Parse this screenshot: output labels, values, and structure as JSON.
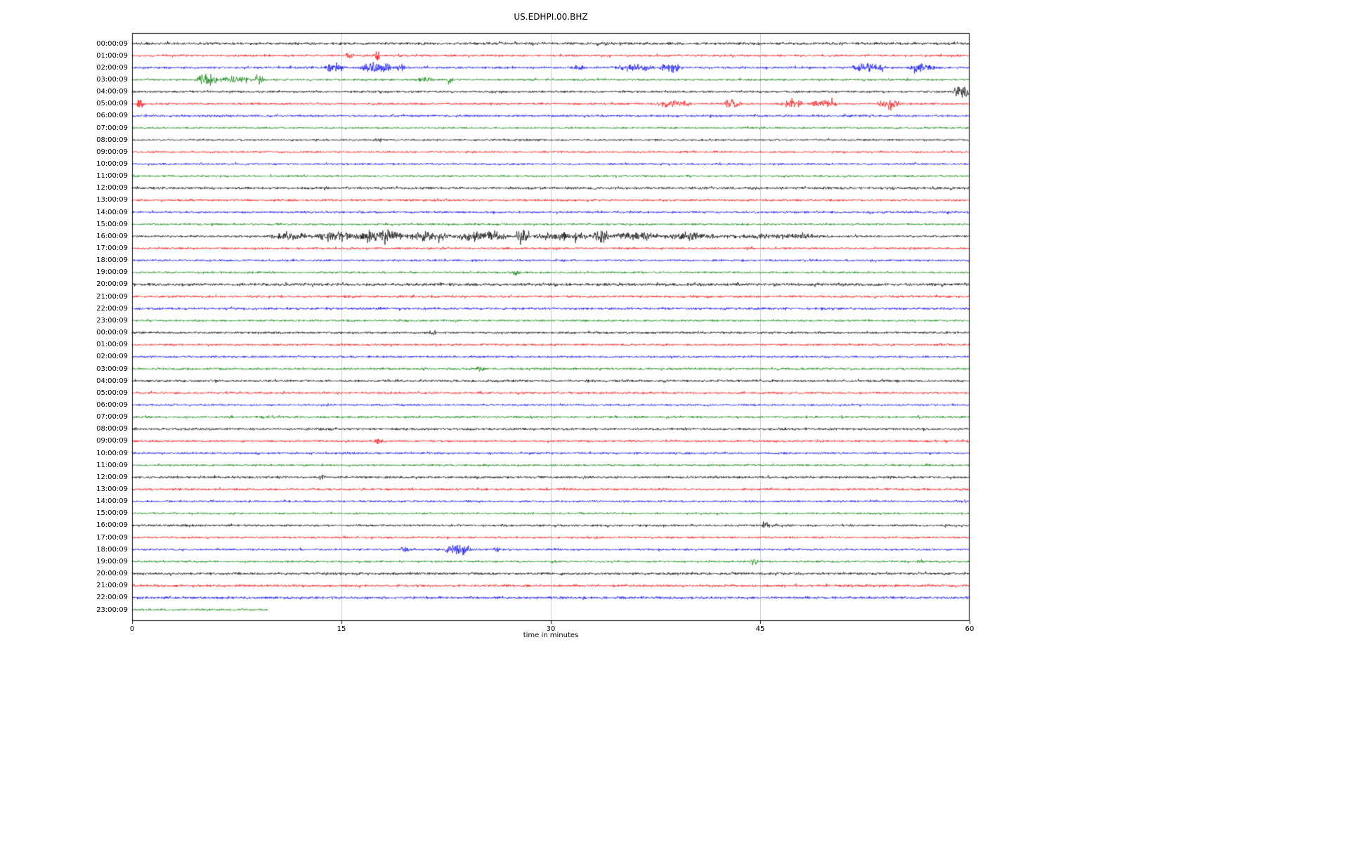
{
  "title": "US.EDHPI.00.BHZ",
  "axis": {
    "xlabel": "time in minutes",
    "x_ticks": [
      0,
      15,
      30,
      45,
      60
    ],
    "x_range": [
      0,
      60
    ]
  },
  "colors": {
    "black": "#000000",
    "red": "#ff0000",
    "blue": "#0000ff",
    "green": "#008000",
    "grid": "#cccccc",
    "axis": "#000000"
  },
  "chart_data": {
    "type": "line",
    "subtype": "helicorder-dayplot",
    "station": "US.EDHPI.00.BHZ",
    "title": "US.EDHPI.00.BHZ",
    "xlabel": "time in minutes",
    "x_units": "minutes",
    "x_range": [
      0,
      60
    ],
    "x_ticks": [
      0,
      15,
      30,
      45,
      60
    ],
    "grid": "vertical-only",
    "color_cycle": [
      "black",
      "red",
      "blue",
      "green"
    ],
    "rows": [
      {
        "label": "00:00:09",
        "color": "black",
        "amp": 1.6,
        "events": []
      },
      {
        "label": "01:00:09",
        "color": "red",
        "amp": 1.3,
        "events": [
          [
            15.3,
            15.8,
            4
          ],
          [
            17.3,
            17.8,
            4.5
          ]
        ]
      },
      {
        "label": "02:00:09",
        "color": "blue",
        "amp": 1.3,
        "events": [
          [
            13.8,
            15.2,
            5
          ],
          [
            16.3,
            18.6,
            5
          ],
          [
            18.8,
            19.6,
            3
          ],
          [
            31.5,
            32.5,
            2.5
          ],
          [
            34.2,
            37.5,
            3
          ],
          [
            37.8,
            39.5,
            4.5
          ],
          [
            51.5,
            54.0,
            4
          ],
          [
            55.5,
            57.5,
            4.5
          ]
        ]
      },
      {
        "label": "03:00:09",
        "color": "green",
        "amp": 1.2,
        "events": [
          [
            4.6,
            6.2,
            7
          ],
          [
            6.2,
            8.6,
            3
          ],
          [
            8.7,
            9.4,
            6
          ],
          [
            20.5,
            21.5,
            2.5
          ],
          [
            22.4,
            23.0,
            2
          ]
        ]
      },
      {
        "label": "04:00:09",
        "color": "black",
        "amp": 1.2,
        "events": [
          [
            58.8,
            60,
            6.5
          ]
        ]
      },
      {
        "label": "05:00:09",
        "color": "red",
        "amp": 1.2,
        "events": [
          [
            0.2,
            0.9,
            4
          ],
          [
            37.3,
            40.2,
            3
          ],
          [
            42.4,
            43.6,
            5
          ],
          [
            46.4,
            48.1,
            3.5
          ],
          [
            48.5,
            50.6,
            4
          ],
          [
            53.3,
            55.2,
            4
          ]
        ]
      },
      {
        "label": "06:00:09",
        "color": "blue",
        "amp": 1.3,
        "events": []
      },
      {
        "label": "07:00:09",
        "color": "green",
        "amp": 1.1,
        "events": []
      },
      {
        "label": "08:00:09",
        "color": "black",
        "amp": 1.1,
        "events": [
          [
            17.4,
            17.9,
            3
          ]
        ]
      },
      {
        "label": "09:00:09",
        "color": "red",
        "amp": 1.1,
        "events": []
      },
      {
        "label": "10:00:09",
        "color": "blue",
        "amp": 1.2,
        "events": []
      },
      {
        "label": "11:00:09",
        "color": "green",
        "amp": 1.2,
        "events": []
      },
      {
        "label": "12:00:09",
        "color": "black",
        "amp": 1.5,
        "events": []
      },
      {
        "label": "13:00:09",
        "color": "red",
        "amp": 1.3,
        "events": []
      },
      {
        "label": "14:00:09",
        "color": "blue",
        "amp": 1.3,
        "events": []
      },
      {
        "label": "15:00:09",
        "color": "green",
        "amp": 1.2,
        "events": []
      },
      {
        "label": "16:00:09",
        "color": "black",
        "amp": 1.3,
        "events": [
          [
            9.8,
            13,
            3
          ],
          [
            13,
            16,
            5
          ],
          [
            16,
            19.5,
            7
          ],
          [
            19.5,
            23,
            4.5
          ],
          [
            23,
            27,
            5
          ],
          [
            27.4,
            28.6,
            8
          ],
          [
            28.6,
            33,
            4
          ],
          [
            33,
            34.2,
            7
          ],
          [
            34.2,
            38,
            3.5
          ],
          [
            38,
            42,
            3
          ],
          [
            42,
            50,
            2
          ]
        ]
      },
      {
        "label": "17:00:09",
        "color": "red",
        "amp": 1.3,
        "events": []
      },
      {
        "label": "18:00:09",
        "color": "blue",
        "amp": 1.2,
        "events": []
      },
      {
        "label": "19:00:09",
        "color": "green",
        "amp": 1.2,
        "events": [
          [
            27.2,
            27.8,
            2.5
          ]
        ]
      },
      {
        "label": "20:00:09",
        "color": "black",
        "amp": 1.7,
        "events": []
      },
      {
        "label": "21:00:09",
        "color": "red",
        "amp": 1.4,
        "events": []
      },
      {
        "label": "22:00:09",
        "color": "blue",
        "amp": 1.4,
        "events": []
      },
      {
        "label": "23:00:09",
        "color": "green",
        "amp": 1.2,
        "events": []
      },
      {
        "label": "00:00:09",
        "color": "black",
        "amp": 1.3,
        "events": [
          [
            21.3,
            21.8,
            3.5
          ]
        ]
      },
      {
        "label": "01:00:09",
        "color": "red",
        "amp": 1.2,
        "events": []
      },
      {
        "label": "02:00:09",
        "color": "blue",
        "amp": 1.2,
        "events": []
      },
      {
        "label": "03:00:09",
        "color": "green",
        "amp": 1.3,
        "events": [
          [
            24.5,
            25.3,
            2
          ]
        ]
      },
      {
        "label": "04:00:09",
        "color": "black",
        "amp": 1.4,
        "events": []
      },
      {
        "label": "05:00:09",
        "color": "red",
        "amp": 1.3,
        "events": []
      },
      {
        "label": "06:00:09",
        "color": "blue",
        "amp": 1.2,
        "events": []
      },
      {
        "label": "07:00:09",
        "color": "green",
        "amp": 1.3,
        "events": []
      },
      {
        "label": "08:00:09",
        "color": "black",
        "amp": 1.4,
        "events": []
      },
      {
        "label": "09:00:09",
        "color": "red",
        "amp": 1.2,
        "events": [
          [
            17.0,
            18.2,
            2
          ]
        ]
      },
      {
        "label": "10:00:09",
        "color": "blue",
        "amp": 1.2,
        "events": []
      },
      {
        "label": "11:00:09",
        "color": "green",
        "amp": 1.2,
        "events": []
      },
      {
        "label": "12:00:09",
        "color": "black",
        "amp": 1.4,
        "events": [
          [
            13.3,
            13.9,
            2
          ]
        ]
      },
      {
        "label": "13:00:09",
        "color": "red",
        "amp": 1.3,
        "events": []
      },
      {
        "label": "14:00:09",
        "color": "blue",
        "amp": 1.2,
        "events": []
      },
      {
        "label": "15:00:09",
        "color": "green",
        "amp": 1.1,
        "events": []
      },
      {
        "label": "16:00:09",
        "color": "black",
        "amp": 1.3,
        "events": [
          [
            45.1,
            45.7,
            3
          ]
        ]
      },
      {
        "label": "17:00:09",
        "color": "red",
        "amp": 1.2,
        "events": []
      },
      {
        "label": "18:00:09",
        "color": "blue",
        "amp": 1.2,
        "events": [
          [
            19.2,
            19.9,
            3
          ],
          [
            22.2,
            24.3,
            4.5
          ],
          [
            25.7,
            26.4,
            2.5
          ]
        ]
      },
      {
        "label": "19:00:09",
        "color": "green",
        "amp": 1.1,
        "events": [
          [
            30.0,
            30.4,
            2.5
          ],
          [
            44.2,
            44.9,
            3.5
          ],
          [
            56.2,
            56.7,
            2
          ]
        ]
      },
      {
        "label": "20:00:09",
        "color": "black",
        "amp": 1.5,
        "events": []
      },
      {
        "label": "21:00:09",
        "color": "red",
        "amp": 1.4,
        "events": []
      },
      {
        "label": "22:00:09",
        "color": "blue",
        "amp": 1.5,
        "events": []
      },
      {
        "label": "23:00:09",
        "color": "green",
        "amp": 1.2,
        "x_end": 9.7,
        "events": []
      }
    ]
  }
}
